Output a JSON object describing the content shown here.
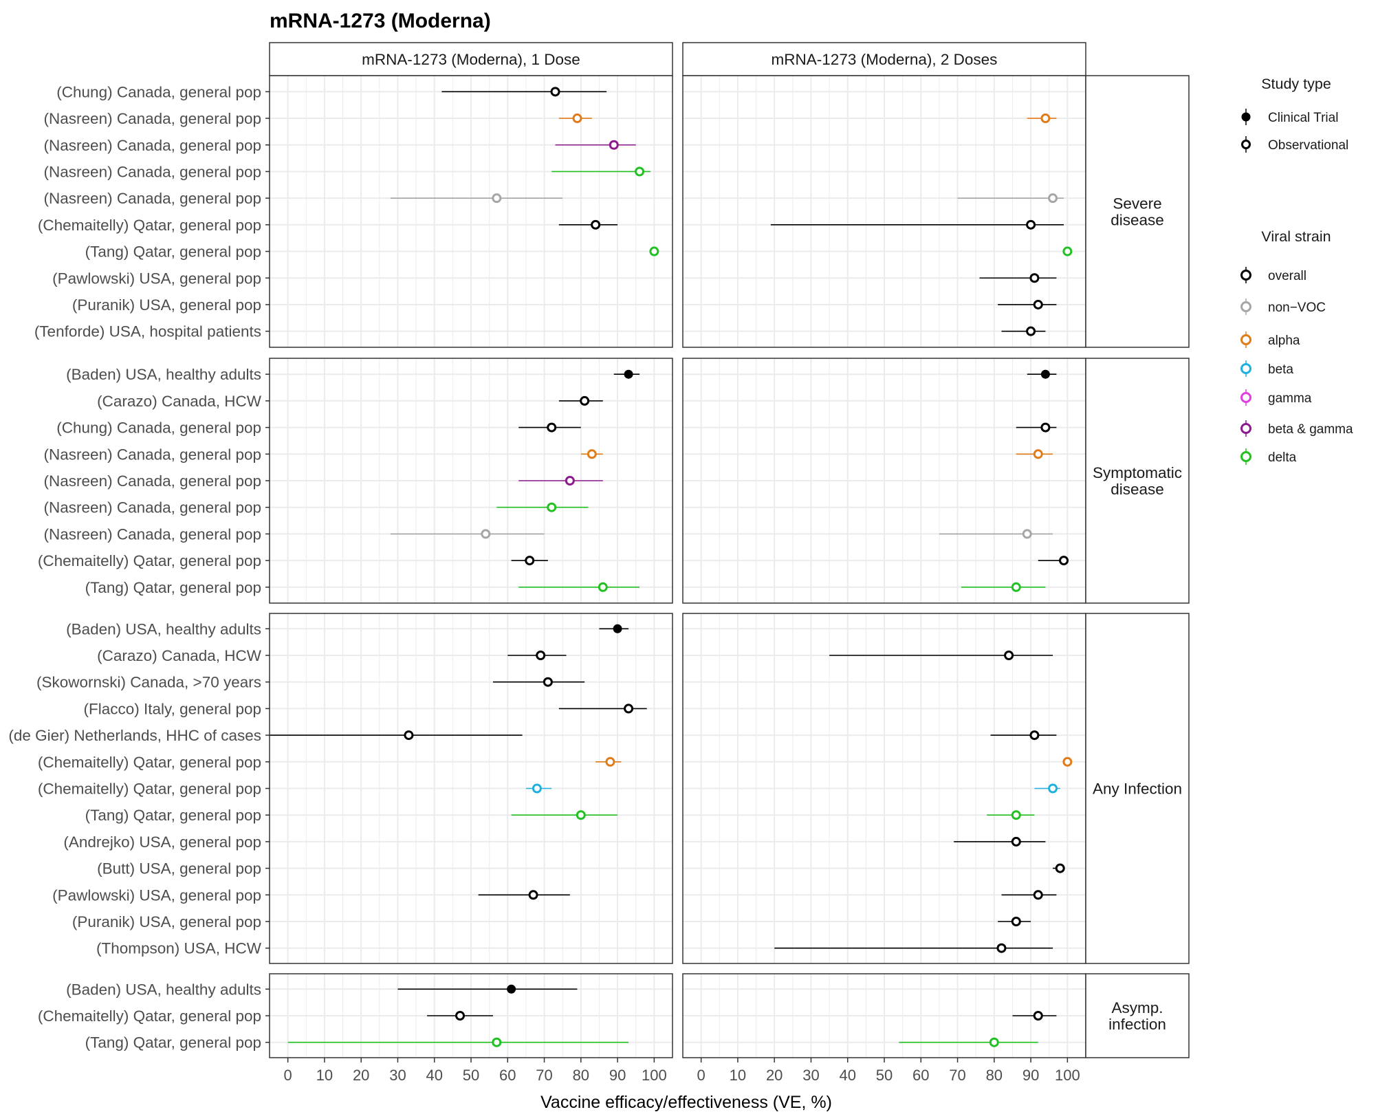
{
  "chart_data": {
    "type": "forest",
    "title": "mRNA-1273 (Moderna)",
    "xlabel": "Vaccine efficacy/effectiveness (VE, %)",
    "xlim": [
      -5,
      105
    ],
    "xticks": [
      0,
      10,
      20,
      30,
      40,
      50,
      60,
      70,
      80,
      90,
      100
    ],
    "grid": true,
    "columns": [
      "mRNA-1273 (Moderna), 1 Dose",
      "mRNA-1273 (Moderna), 2 Doses"
    ],
    "colors": {
      "overall": "#000000",
      "non-VOC": "#a6a6a6",
      "alpha": "#e07b1a",
      "beta": "#1fb0e0",
      "gamma": "#e040e0",
      "beta & gamma": "#8c1a8c",
      "delta": "#22c022"
    },
    "legend": {
      "placement": "right",
      "study_type_title": "Study type",
      "study_types": [
        {
          "label": "Clinical Trial",
          "filled": true
        },
        {
          "label": "Observational",
          "filled": false
        }
      ],
      "strain_title": "Viral strain",
      "strains": [
        {
          "key": "overall",
          "label": "overall"
        },
        {
          "key": "non-VOC",
          "label": "non−VOC"
        },
        {
          "key": "alpha",
          "label": "alpha"
        },
        {
          "key": "beta",
          "label": "beta"
        },
        {
          "key": "gamma",
          "label": "gamma"
        },
        {
          "key": "beta & gamma",
          "label": "beta & gamma"
        },
        {
          "key": "delta",
          "label": "delta"
        }
      ]
    },
    "panels": [
      {
        "label": "Severe\ndisease",
        "rows": [
          {
            "study": "(Chung) Canada, general pop",
            "strain": "overall",
            "type": "Observational",
            "d1": [
              73,
              42,
              87
            ],
            "d2": null
          },
          {
            "study": "(Nasreen) Canada, general pop",
            "strain": "alpha",
            "type": "Observational",
            "d1": [
              79,
              74,
              83
            ],
            "d2": [
              94,
              89,
              97
            ]
          },
          {
            "study": "(Nasreen) Canada, general pop",
            "strain": "beta & gamma",
            "type": "Observational",
            "d1": [
              89,
              73,
              95
            ],
            "d2": null
          },
          {
            "study": "(Nasreen) Canada, general pop",
            "strain": "delta",
            "type": "Observational",
            "d1": [
              96,
              72,
              99
            ],
            "d2": null
          },
          {
            "study": "(Nasreen) Canada, general pop",
            "strain": "non-VOC",
            "type": "Observational",
            "d1": [
              57,
              28,
              75
            ],
            "d2": [
              96,
              70,
              99
            ]
          },
          {
            "study": "(Chemaitelly) Qatar, general pop",
            "strain": "overall",
            "type": "Observational",
            "d1": [
              84,
              74,
              90
            ],
            "d2": [
              90,
              19,
              99
            ]
          },
          {
            "study": "(Tang) Qatar, general pop",
            "strain": "delta",
            "type": "Observational",
            "d1": [
              100,
              100,
              100
            ],
            "d2": [
              100,
              100,
              100
            ]
          },
          {
            "study": "(Pawlowski) USA, general pop",
            "strain": "overall",
            "type": "Observational",
            "d1": null,
            "d2": [
              91,
              76,
              97
            ]
          },
          {
            "study": "(Puranik) USA, general pop",
            "strain": "overall",
            "type": "Observational",
            "d1": null,
            "d2": [
              92,
              81,
              97
            ]
          },
          {
            "study": "(Tenforde) USA, hospital patients",
            "strain": "overall",
            "type": "Observational",
            "d1": null,
            "d2": [
              90,
              82,
              94
            ]
          }
        ]
      },
      {
        "label": "Symptomatic\ndisease",
        "rows": [
          {
            "study": "(Baden) USA, healthy adults",
            "strain": "overall",
            "type": "Clinical Trial",
            "d1": [
              93,
              89,
              96
            ],
            "d2": [
              94,
              89,
              97
            ]
          },
          {
            "study": "(Carazo) Canada, HCW",
            "strain": "overall",
            "type": "Observational",
            "d1": [
              81,
              74,
              86
            ],
            "d2": null
          },
          {
            "study": "(Chung) Canada, general pop",
            "strain": "overall",
            "type": "Observational",
            "d1": [
              72,
              63,
              80
            ],
            "d2": [
              94,
              86,
              97
            ]
          },
          {
            "study": "(Nasreen) Canada, general pop",
            "strain": "alpha",
            "type": "Observational",
            "d1": [
              83,
              80,
              86
            ],
            "d2": [
              92,
              86,
              96
            ]
          },
          {
            "study": "(Nasreen) Canada, general pop",
            "strain": "beta & gamma",
            "type": "Observational",
            "d1": [
              77,
              63,
              86
            ],
            "d2": null
          },
          {
            "study": "(Nasreen) Canada, general pop",
            "strain": "delta",
            "type": "Observational",
            "d1": [
              72,
              57,
              82
            ],
            "d2": null
          },
          {
            "study": "(Nasreen) Canada, general pop",
            "strain": "non-VOC",
            "type": "Observational",
            "d1": [
              54,
              28,
              70
            ],
            "d2": [
              89,
              65,
              96
            ]
          },
          {
            "study": "(Chemaitelly) Qatar, general pop",
            "strain": "overall",
            "type": "Observational",
            "d1": [
              66,
              61,
              71
            ],
            "d2": [
              99,
              92,
              100
            ]
          },
          {
            "study": "(Tang) Qatar, general pop",
            "strain": "delta",
            "type": "Observational",
            "d1": [
              86,
              63,
              96
            ],
            "d2": [
              86,
              71,
              94
            ]
          }
        ]
      },
      {
        "label": "Any Infection",
        "rows": [
          {
            "study": "(Baden) USA, healthy adults",
            "strain": "overall",
            "type": "Clinical Trial",
            "d1": [
              90,
              85,
              93
            ],
            "d2": null
          },
          {
            "study": "(Carazo) Canada, HCW",
            "strain": "overall",
            "type": "Observational",
            "d1": [
              69,
              60,
              76
            ],
            "d2": [
              84,
              35,
              96
            ]
          },
          {
            "study": "(Skowornski) Canada, >70 years",
            "strain": "overall",
            "type": "Observational",
            "d1": [
              71,
              56,
              81
            ],
            "d2": null
          },
          {
            "study": "(Flacco) Italy, general pop",
            "strain": "overall",
            "type": "Observational",
            "d1": [
              93,
              74,
              98
            ],
            "d2": null
          },
          {
            "study": "(de Gier) Netherlands, HHC of cases",
            "strain": "overall",
            "type": "Observational",
            "d1": [
              33,
              -5,
              64
            ],
            "d2": [
              91,
              79,
              97
            ]
          },
          {
            "study": "(Chemaitelly) Qatar, general pop",
            "strain": "alpha",
            "type": "Observational",
            "d1": [
              88,
              84,
              91
            ],
            "d2": [
              100,
              100,
              100
            ]
          },
          {
            "study": "(Chemaitelly) Qatar, general pop",
            "strain": "beta",
            "type": "Observational",
            "d1": [
              68,
              65,
              72
            ],
            "d2": [
              96,
              91,
              98
            ]
          },
          {
            "study": "(Tang) Qatar, general pop",
            "strain": "delta",
            "type": "Observational",
            "d1": [
              80,
              61,
              90
            ],
            "d2": [
              86,
              78,
              91
            ]
          },
          {
            "study": "(Andrejko) USA, general pop",
            "strain": "overall",
            "type": "Observational",
            "d1": null,
            "d2": [
              86,
              69,
              94
            ]
          },
          {
            "study": "(Butt) USA, general pop",
            "strain": "overall",
            "type": "Observational",
            "d1": null,
            "d2": [
              98,
              96,
              99
            ]
          },
          {
            "study": "(Pawlowski) USA, general pop",
            "strain": "overall",
            "type": "Observational",
            "d1": [
              67,
              52,
              77
            ],
            "d2": [
              92,
              82,
              97
            ]
          },
          {
            "study": "(Puranik) USA, general pop",
            "strain": "overall",
            "type": "Observational",
            "d1": null,
            "d2": [
              86,
              81,
              90
            ]
          },
          {
            "study": "(Thompson) USA, HCW",
            "strain": "overall",
            "type": "Observational",
            "d1": null,
            "d2": [
              82,
              20,
              96
            ]
          }
        ]
      },
      {
        "label": "Asymp.\ninfection",
        "rows": [
          {
            "study": "(Baden) USA, healthy adults",
            "strain": "overall",
            "type": "Clinical Trial",
            "d1": [
              61,
              30,
              79
            ],
            "d2": null
          },
          {
            "study": "(Chemaitelly) Qatar, general pop",
            "strain": "overall",
            "type": "Observational",
            "d1": [
              47,
              38,
              56
            ],
            "d2": [
              92,
              85,
              97
            ]
          },
          {
            "study": "(Tang) Qatar, general pop",
            "strain": "delta",
            "type": "Observational",
            "d1": [
              57,
              0,
              93
            ],
            "d2": [
              80,
              54,
              92
            ]
          }
        ]
      }
    ]
  }
}
